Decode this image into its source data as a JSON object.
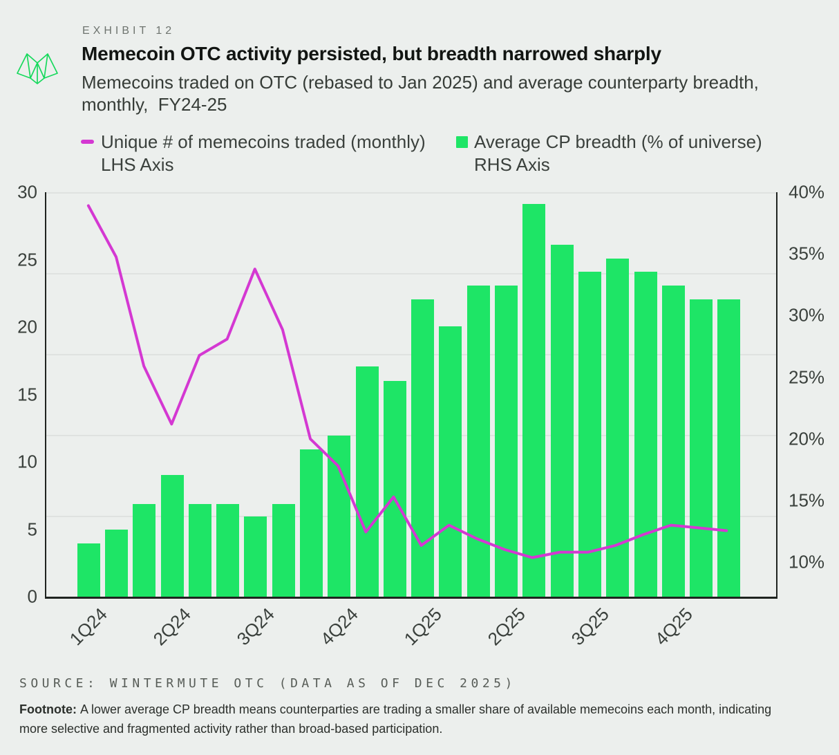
{
  "header": {
    "kicker": "EXHIBIT 12",
    "title": "Memecoin OTC activity persisted, but breadth narrowed sharply",
    "subtitle_lines": [
      "Memecoins traded on OTC (rebased to Jan 2025) and average counterparty breadth,",
      "monthly,  FY24-25"
    ]
  },
  "legend": {
    "items": [
      {
        "label": "Unique # of memecoins traded (monthly)",
        "axis_note": "LHS Axis",
        "marker": "line-dash-icon",
        "color": "#d438d2"
      },
      {
        "label": "Average CP breadth (% of universe)",
        "axis_note": "RHS Axis",
        "marker": "square-icon",
        "color": "#1ee566"
      }
    ]
  },
  "chart_data": {
    "type": "combo",
    "title": "Memecoin OTC activity persisted, but breadth narrowed sharply",
    "months_count": 24,
    "x_ticks": {
      "indices": [
        0,
        3,
        6,
        9,
        12,
        15,
        18,
        21
      ],
      "labels": [
        "1Q24",
        "2Q24",
        "3Q24",
        "4Q24",
        "1Q25",
        "2Q25",
        "3Q25",
        "4Q25"
      ]
    },
    "left_axis": {
      "name": "LHS Axis",
      "min": 0,
      "max": 30,
      "ticks": [
        0,
        5,
        10,
        15,
        20,
        25,
        30
      ],
      "tick_suffix": ""
    },
    "right_axis": {
      "name": "RHS Axis",
      "min": 7.2,
      "max": 40,
      "ticks": [
        10,
        15,
        20,
        25,
        30,
        35,
        40
      ],
      "tick_suffix": "%"
    },
    "grid": {
      "horizontal_divisions": 5,
      "gridlines_on": true,
      "legend_position": "top"
    },
    "series": [
      {
        "name": "Unique # of memecoins traded (monthly)",
        "type": "line",
        "axis": "left",
        "color": "#d438d2",
        "values": [
          29.0,
          25.2,
          17.1,
          12.8,
          17.9,
          19.1,
          24.3,
          19.8,
          11.7,
          9.7,
          4.8,
          7.4,
          3.8,
          5.3,
          4.3,
          3.5,
          2.9,
          3.3,
          3.3,
          3.8,
          4.6,
          5.3,
          5.1,
          4.9
        ]
      },
      {
        "name": "Average CP breadth (% of universe)",
        "type": "bar",
        "axis": "right",
        "color": "#1ee566",
        "values": [
          11.5,
          12.6,
          14.7,
          17.0,
          14.7,
          14.7,
          13.7,
          14.7,
          19.1,
          20.2,
          25.8,
          24.6,
          31.2,
          29.0,
          32.3,
          32.3,
          38.9,
          35.6,
          33.4,
          34.5,
          33.4,
          32.3,
          31.2,
          31.2
        ]
      }
    ]
  },
  "footer": {
    "source": "SOURCE: WINTERMUTE OTC (DATA AS OF DEC 2025)",
    "footnote_label": "Footnote:",
    "footnote_lines": [
      "A lower average CP breadth means counterparties are trading a smaller share of available memecoins each month, indicating",
      "more selective and fragmented activity rather than broad-based participation."
    ]
  },
  "colors": {
    "background": "#ecefed",
    "bar_green": "#1ee566",
    "line_magenta": "#d438d2",
    "gridline": "#dfe2e0",
    "axis_spine": "#1f2320",
    "logo_green": "#16d95c"
  }
}
